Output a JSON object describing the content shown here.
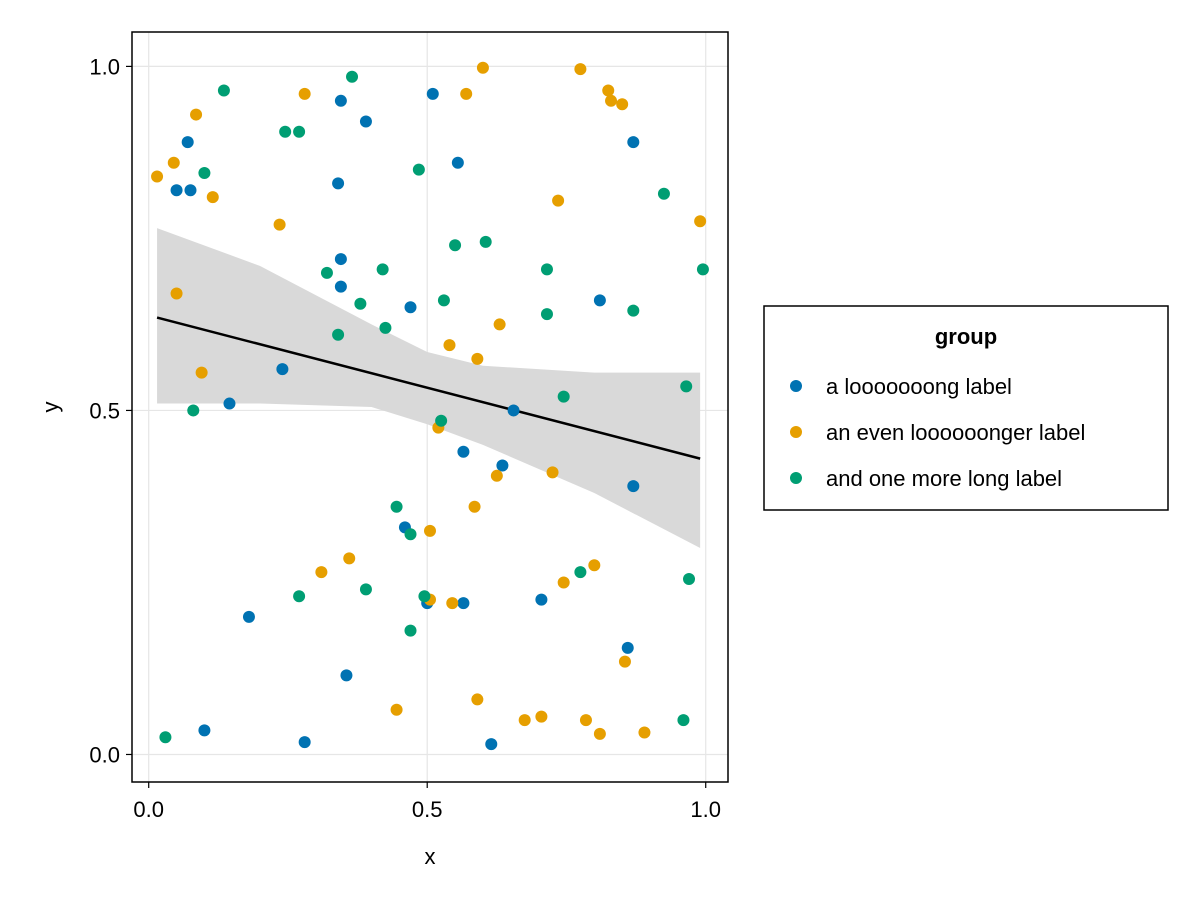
{
  "chart_data": {
    "type": "scatter",
    "xlabel": "x",
    "ylabel": "y",
    "xlim": [
      -0.03,
      1.04
    ],
    "ylim": [
      -0.04,
      1.05
    ],
    "xticks": [
      0.0,
      0.5,
      1.0
    ],
    "xtick_labels": [
      "0.0",
      "0.5",
      "1.0"
    ],
    "yticks": [
      0.0,
      0.5,
      1.0
    ],
    "ytick_labels": [
      "0.0",
      "0.5",
      "1.0"
    ],
    "grid": true,
    "legend": {
      "title": "group",
      "placement": "right"
    },
    "series": [
      {
        "name": "a looooooong label",
        "color": "#0072B2",
        "points": [
          [
            0.05,
            0.82
          ],
          [
            0.075,
            0.82
          ],
          [
            0.07,
            0.89
          ],
          [
            0.345,
            0.95
          ],
          [
            0.39,
            0.92
          ],
          [
            0.51,
            0.96
          ],
          [
            0.555,
            0.86
          ],
          [
            0.87,
            0.89
          ],
          [
            0.34,
            0.83
          ],
          [
            0.345,
            0.72
          ],
          [
            0.345,
            0.68
          ],
          [
            0.47,
            0.65
          ],
          [
            0.81,
            0.66
          ],
          [
            0.24,
            0.56
          ],
          [
            0.145,
            0.51
          ],
          [
            0.655,
            0.5
          ],
          [
            0.565,
            0.44
          ],
          [
            0.635,
            0.42
          ],
          [
            0.87,
            0.39
          ],
          [
            0.46,
            0.33
          ],
          [
            0.18,
            0.2
          ],
          [
            0.5,
            0.22
          ],
          [
            0.565,
            0.22
          ],
          [
            0.705,
            0.225
          ],
          [
            0.86,
            0.155
          ],
          [
            0.355,
            0.115
          ],
          [
            0.1,
            0.035
          ],
          [
            0.28,
            0.018
          ],
          [
            0.615,
            0.015
          ]
        ]
      },
      {
        "name": "an even loooooonger label",
        "color": "#E69F00",
        "points": [
          [
            0.6,
            0.998
          ],
          [
            0.775,
            0.996
          ],
          [
            0.825,
            0.965
          ],
          [
            0.83,
            0.95
          ],
          [
            0.85,
            0.945
          ],
          [
            0.28,
            0.96
          ],
          [
            0.57,
            0.96
          ],
          [
            0.085,
            0.93
          ],
          [
            0.045,
            0.86
          ],
          [
            0.015,
            0.84
          ],
          [
            0.115,
            0.81
          ],
          [
            0.735,
            0.805
          ],
          [
            0.235,
            0.77
          ],
          [
            0.99,
            0.775
          ],
          [
            0.05,
            0.67
          ],
          [
            0.63,
            0.625
          ],
          [
            0.54,
            0.595
          ],
          [
            0.59,
            0.575
          ],
          [
            0.095,
            0.555
          ],
          [
            0.52,
            0.475
          ],
          [
            0.725,
            0.41
          ],
          [
            0.625,
            0.405
          ],
          [
            0.585,
            0.36
          ],
          [
            0.505,
            0.325
          ],
          [
            0.36,
            0.285
          ],
          [
            0.8,
            0.275
          ],
          [
            0.31,
            0.265
          ],
          [
            0.745,
            0.25
          ],
          [
            0.505,
            0.225
          ],
          [
            0.545,
            0.22
          ],
          [
            0.855,
            0.135
          ],
          [
            0.59,
            0.08
          ],
          [
            0.445,
            0.065
          ],
          [
            0.675,
            0.05
          ],
          [
            0.705,
            0.055
          ],
          [
            0.785,
            0.05
          ],
          [
            0.81,
            0.03
          ],
          [
            0.89,
            0.032
          ]
        ]
      },
      {
        "name": "and one more long label",
        "color": "#009E73",
        "points": [
          [
            0.365,
            0.985
          ],
          [
            0.135,
            0.965
          ],
          [
            0.245,
            0.905
          ],
          [
            0.27,
            0.905
          ],
          [
            0.1,
            0.845
          ],
          [
            0.485,
            0.85
          ],
          [
            0.925,
            0.815
          ],
          [
            0.55,
            0.74
          ],
          [
            0.605,
            0.745
          ],
          [
            0.715,
            0.705
          ],
          [
            0.995,
            0.705
          ],
          [
            0.32,
            0.7
          ],
          [
            0.42,
            0.705
          ],
          [
            0.38,
            0.655
          ],
          [
            0.53,
            0.66
          ],
          [
            0.715,
            0.64
          ],
          [
            0.87,
            0.645
          ],
          [
            0.425,
            0.62
          ],
          [
            0.34,
            0.61
          ],
          [
            0.965,
            0.535
          ],
          [
            0.745,
            0.52
          ],
          [
            0.08,
            0.5
          ],
          [
            0.525,
            0.485
          ],
          [
            0.445,
            0.36
          ],
          [
            0.47,
            0.32
          ],
          [
            0.775,
            0.265
          ],
          [
            0.97,
            0.255
          ],
          [
            0.39,
            0.24
          ],
          [
            0.27,
            0.23
          ],
          [
            0.495,
            0.23
          ],
          [
            0.47,
            0.18
          ],
          [
            0.03,
            0.025
          ],
          [
            0.96,
            0.05
          ]
        ]
      }
    ],
    "regression": {
      "color": "#000000",
      "band_color": "#D9D9D9",
      "line": [
        [
          0.015,
          0.635
        ],
        [
          0.99,
          0.43
        ]
      ],
      "band_upper": [
        [
          0.015,
          0.765
        ],
        [
          0.2,
          0.71
        ],
        [
          0.4,
          0.625
        ],
        [
          0.5,
          0.585
        ],
        [
          0.6,
          0.565
        ],
        [
          0.8,
          0.555
        ],
        [
          0.99,
          0.555
        ]
      ],
      "band_lower": [
        [
          0.015,
          0.51
        ],
        [
          0.2,
          0.51
        ],
        [
          0.4,
          0.505
        ],
        [
          0.5,
          0.48
        ],
        [
          0.6,
          0.45
        ],
        [
          0.8,
          0.38
        ],
        [
          0.99,
          0.3
        ]
      ]
    }
  }
}
